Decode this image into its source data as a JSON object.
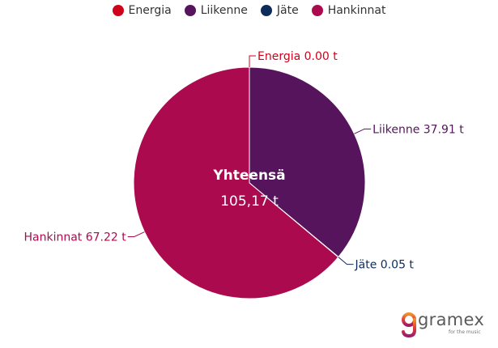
{
  "chart_data": {
    "type": "pie",
    "title": "",
    "categories": [
      "Energia",
      "Liikenne",
      "Jäte",
      "Hankinnat"
    ],
    "values": [
      0.0,
      37.91,
      0.05,
      67.22
    ],
    "colors": [
      "#d0021b",
      "#55145c",
      "#0d2c5a",
      "#ab0a4f"
    ],
    "data_labels": [
      "Energia 0.00 t",
      "Liikenne 37.91 t",
      "Jäte 0.05 t",
      "Hankinnat 67.22 t"
    ],
    "legend_placement": "top-center",
    "center_title": "Yhteensä",
    "center_value": "105,17 t"
  },
  "logo": {
    "name": "gramex",
    "tagline": "for the music",
    "icon": "gramex-logo-icon"
  }
}
